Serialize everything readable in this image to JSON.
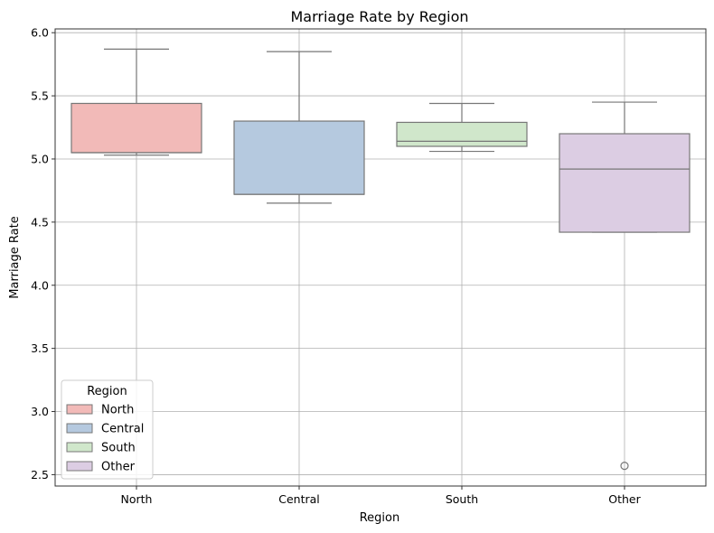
{
  "chart_data": {
    "type": "box",
    "title": "Marriage Rate by Region",
    "xlabel": "Region",
    "ylabel": "Marriage Rate",
    "ylim": [
      2.41,
      6.03
    ],
    "yticks": [
      2.5,
      3.0,
      3.5,
      4.0,
      4.5,
      5.0,
      5.5,
      6.0
    ],
    "ytick_labels": [
      "2.5",
      "3.0",
      "3.5",
      "4.0",
      "4.5",
      "5.0",
      "5.5",
      "6.0"
    ],
    "grid": true,
    "categories": [
      "North",
      "Central",
      "South",
      "Other"
    ],
    "boxes": [
      {
        "category": "North",
        "whisker_low": 5.03,
        "q1": 5.05,
        "median": 5.05,
        "q3": 5.44,
        "whisker_high": 5.87,
        "outliers": [],
        "color": "#f2bab8"
      },
      {
        "category": "Central",
        "whisker_low": 4.65,
        "q1": 4.72,
        "median": 4.72,
        "q3": 5.3,
        "whisker_high": 5.85,
        "outliers": [],
        "color": "#b5c9df"
      },
      {
        "category": "South",
        "whisker_low": 5.06,
        "q1": 5.1,
        "median": 5.14,
        "q3": 5.29,
        "whisker_high": 5.44,
        "outliers": [],
        "color": "#d0e7cb"
      },
      {
        "category": "Other",
        "whisker_low": 4.42,
        "q1": 4.42,
        "median": 4.92,
        "q3": 5.2,
        "whisker_high": 5.45,
        "outliers": [
          2.57
        ],
        "color": "#dccde3"
      }
    ],
    "legend": {
      "title": "Region",
      "placement": "lower-left",
      "entries": [
        "North",
        "Central",
        "South",
        "Other"
      ]
    }
  }
}
